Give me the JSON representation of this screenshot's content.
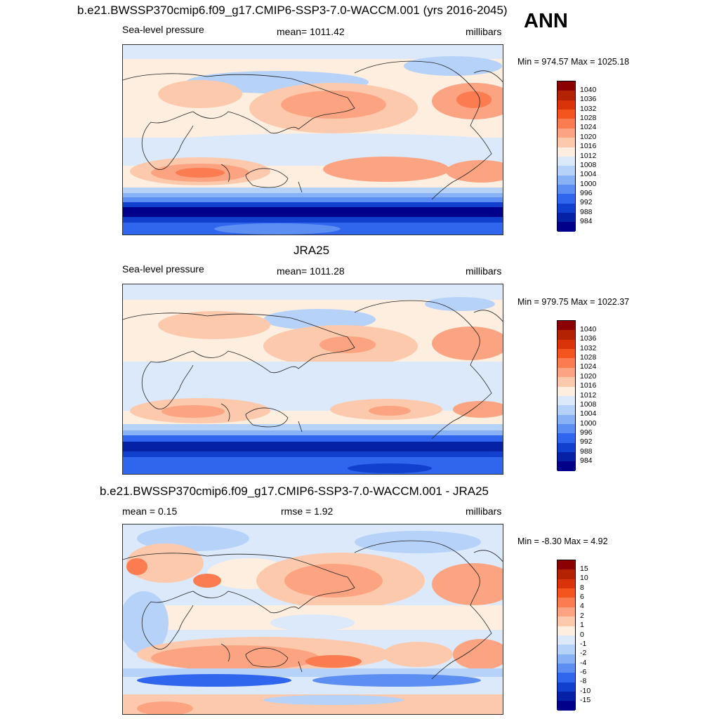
{
  "top": {
    "title": "b.e21.BWSSP370cmip6.f09_g17.CMIP6-SSP3-7.0-WACCM.001 (yrs 2016-2045)",
    "season": "ANN",
    "var_label": "Sea-level pressure",
    "mean_text": "mean= 1011.42",
    "units": "millibars",
    "minmax": "Min = 974.57 Max = 1025.18"
  },
  "middle": {
    "title": "JRA25",
    "var_label": "Sea-level pressure",
    "mean_text": "mean= 1011.28",
    "units": "millibars",
    "minmax": "Min = 979.75 Max = 1022.37"
  },
  "bottom": {
    "title": "b.e21.BWSSP370cmip6.f09_g17.CMIP6-SSP3-7.0-WACCM.001 - JRA25",
    "mean_text": "mean =   0.15",
    "rmse_text": "rmse =   1.92",
    "units": "millibars",
    "minmax": "Min =  -8.30 Max =   4.92"
  },
  "colorbar_slp": {
    "labels": [
      "1040",
      "1036",
      "1032",
      "1028",
      "1024",
      "1020",
      "1016",
      "1012",
      "1008",
      "1004",
      "1000",
      "996",
      "992",
      "988",
      "984"
    ],
    "colors": [
      "#8b0000",
      "#b22203",
      "#d93409",
      "#f4541e",
      "#fa7c50",
      "#fca482",
      "#fdc9ad",
      "#feeedf",
      "#dbe9fb",
      "#b6d2f8",
      "#88b2f5",
      "#5d8ef2",
      "#3065ee",
      "#1140cf",
      "#0521a6",
      "#00008b"
    ]
  },
  "colorbar_diff": {
    "labels": [
      "15",
      "10",
      "8",
      "6",
      "4",
      "2",
      "1",
      "0",
      "-1",
      "-2",
      "-4",
      "-6",
      "-8",
      "-10",
      "-15"
    ],
    "colors": [
      "#8b0000",
      "#b22203",
      "#d93409",
      "#f4541e",
      "#fa7c50",
      "#fca482",
      "#fdc9ad",
      "#feeedf",
      "#dbe9fb",
      "#b6d2f8",
      "#88b2f5",
      "#5d8ef2",
      "#3065ee",
      "#1140cf",
      "#0521a6",
      "#00008b"
    ]
  }
}
